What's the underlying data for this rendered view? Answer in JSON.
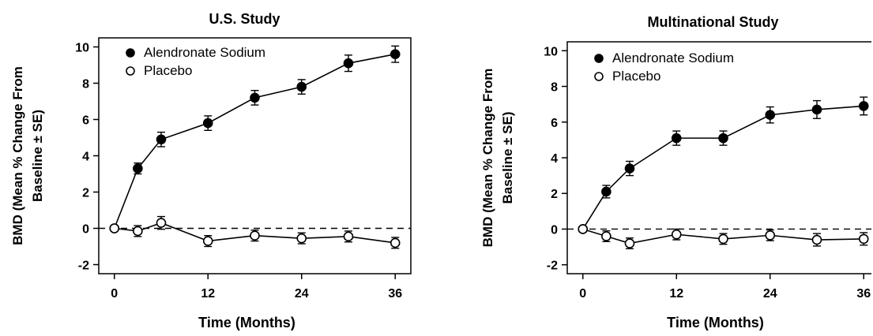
{
  "chart_data": [
    {
      "type": "line",
      "title": "U.S. Study",
      "xlabel": "Time (Months)",
      "ylabel": [
        "BMD (Mean % Change From",
        "Baseline ± SE)"
      ],
      "xlim": [
        -2,
        38
      ],
      "ylim": [
        -2.5,
        10.5
      ],
      "xticks": [
        0,
        12,
        24,
        36
      ],
      "yticks": [
        -2,
        0,
        2,
        4,
        6,
        8,
        10
      ],
      "reference_line": {
        "y": 0,
        "style": "dashed"
      },
      "grid": false,
      "legend_position": "top-left",
      "series": [
        {
          "name": "Alendronate Sodium",
          "marker": "filled-circle",
          "color": "#000000",
          "x": [
            0,
            3,
            6,
            12,
            18,
            24,
            30,
            36
          ],
          "y": [
            0,
            3.3,
            4.9,
            5.8,
            7.2,
            7.8,
            9.1,
            9.6
          ],
          "se": [
            0.05,
            0.3,
            0.4,
            0.4,
            0.4,
            0.4,
            0.45,
            0.45
          ]
        },
        {
          "name": "Placebo",
          "marker": "open-circle",
          "color": "#000000",
          "x": [
            0,
            3,
            6,
            12,
            18,
            24,
            30,
            36
          ],
          "y": [
            0,
            -0.15,
            0.3,
            -0.7,
            -0.4,
            -0.55,
            -0.45,
            -0.8
          ],
          "se": [
            0.05,
            0.3,
            0.35,
            0.3,
            0.3,
            0.3,
            0.3,
            0.3
          ]
        }
      ]
    },
    {
      "type": "line",
      "title": "Multinational Study",
      "xlabel": "Time (Months)",
      "ylabel": [
        "BMD (Mean % Change From",
        "Baseline ± SE)"
      ],
      "xlim": [
        -2,
        38
      ],
      "ylim": [
        -2.5,
        10.5
      ],
      "xticks": [
        0,
        12,
        24,
        36
      ],
      "yticks": [
        -2,
        0,
        2,
        4,
        6,
        8,
        10
      ],
      "reference_line": {
        "y": 0,
        "style": "dashed"
      },
      "grid": false,
      "legend_position": "top-left",
      "series": [
        {
          "name": "Alendronate Sodium",
          "marker": "filled-circle",
          "color": "#000000",
          "x": [
            0,
            3,
            6,
            12,
            18,
            24,
            30,
            36
          ],
          "y": [
            0,
            2.1,
            3.4,
            5.1,
            5.1,
            6.4,
            6.7,
            6.9
          ],
          "se": [
            0.05,
            0.35,
            0.4,
            0.4,
            0.4,
            0.45,
            0.5,
            0.5
          ]
        },
        {
          "name": "Placebo",
          "marker": "open-circle",
          "color": "#000000",
          "x": [
            0,
            3,
            6,
            12,
            18,
            24,
            30,
            36
          ],
          "y": [
            0,
            -0.4,
            -0.8,
            -0.3,
            -0.55,
            -0.35,
            -0.6,
            -0.55
          ],
          "se": [
            0.05,
            0.3,
            0.3,
            0.3,
            0.3,
            0.3,
            0.35,
            0.35
          ]
        }
      ]
    }
  ]
}
